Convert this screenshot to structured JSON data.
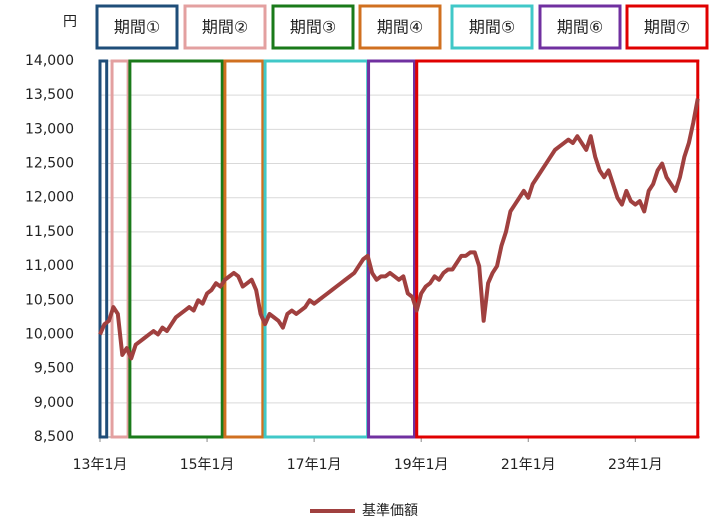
{
  "chart_data": {
    "type": "line",
    "y_unit": "円",
    "categories": [
      "13年1月",
      null,
      null,
      null,
      null,
      null,
      null,
      null,
      null,
      null,
      null,
      null,
      null,
      null,
      null,
      null,
      null,
      null,
      null,
      null,
      null,
      null,
      null,
      null,
      "15年1月",
      null,
      null,
      null,
      null,
      null,
      null,
      null,
      null,
      null,
      null,
      null,
      null,
      null,
      null,
      null,
      null,
      null,
      null,
      null,
      null,
      null,
      null,
      null,
      "17年1月",
      null,
      null,
      null,
      null,
      null,
      null,
      null,
      null,
      null,
      null,
      null,
      null,
      null,
      null,
      null,
      null,
      null,
      null,
      null,
      null,
      null,
      null,
      null,
      "19年1月",
      null,
      null,
      null,
      null,
      null,
      null,
      null,
      null,
      null,
      null,
      null,
      null,
      null,
      null,
      null,
      null,
      null,
      null,
      null,
      null,
      null,
      null,
      null,
      "21年1月",
      null,
      null,
      null,
      null,
      null,
      null,
      null,
      null,
      null,
      null,
      null,
      null,
      null,
      null,
      null,
      null,
      null,
      null,
      null,
      null,
      null,
      null,
      null,
      "23年1月",
      null,
      null,
      null,
      null,
      null,
      null,
      null,
      null,
      null,
      null,
      null,
      null,
      null,
      null
    ],
    "series": [
      {
        "name": "基準価額",
        "color": "#a0403f",
        "values": [
          10000,
          10150,
          10200,
          10400,
          10300,
          9700,
          9800,
          9650,
          9850,
          9900,
          9950,
          10000,
          10050,
          10000,
          10100,
          10050,
          10150,
          10250,
          10300,
          10350,
          10400,
          10350,
          10500,
          10450,
          10600,
          10650,
          10750,
          10700,
          10800,
          10850,
          10900,
          10850,
          10700,
          10750,
          10800,
          10650,
          10300,
          10150,
          10300,
          10250,
          10200,
          10100,
          10300,
          10350,
          10300,
          10350,
          10400,
          10500,
          10450,
          10500,
          10550,
          10600,
          10650,
          10700,
          10750,
          10800,
          10850,
          10900,
          11000,
          11100,
          11150,
          10900,
          10800,
          10850,
          10850,
          10900,
          10850,
          10800,
          10850,
          10600,
          10550,
          10350,
          10600,
          10700,
          10750,
          10850,
          10800,
          10900,
          10950,
          10950,
          11050,
          11150,
          11150,
          11200,
          11200,
          11000,
          10200,
          10750,
          10900,
          11000,
          11300,
          11500,
          11800,
          11900,
          12000,
          12100,
          12000,
          12200,
          12300,
          12400,
          12500,
          12600,
          12700,
          12750,
          12800,
          12850,
          12800,
          12900,
          12800,
          12700,
          12900,
          12600,
          12400,
          12300,
          12400,
          12200,
          12000,
          11900,
          12100,
          11950,
          11900,
          11950,
          11800,
          12100,
          12200,
          12400,
          12500,
          12300,
          12200,
          12100,
          12300,
          12600,
          12800,
          13100,
          13450
        ]
      }
    ],
    "ylim": [
      8500,
      14000
    ],
    "yticks": [
      {
        "value": 8500,
        "label": "8,500"
      },
      {
        "value": 9000,
        "label": "9,000"
      },
      {
        "value": 9500,
        "label": "9,500"
      },
      {
        "value": 10000,
        "label": "10,000"
      },
      {
        "value": 10500,
        "label": "10,500"
      },
      {
        "value": 11000,
        "label": "11,000"
      },
      {
        "value": 11500,
        "label": "11,500"
      },
      {
        "value": 12000,
        "label": "12,000"
      },
      {
        "value": 12500,
        "label": "12,500"
      },
      {
        "value": 13000,
        "label": "13,000"
      },
      {
        "value": 13500,
        "label": "13,500"
      },
      {
        "value": 14000,
        "label": "14,000"
      }
    ],
    "grid": true,
    "legend": "bottom",
    "periods": [
      {
        "label": "期間①",
        "color": "#1f4e79",
        "start": 0,
        "end": 1.5
      },
      {
        "label": "期間②",
        "color": "#e3a0a0",
        "start": 2.7,
        "end": 6.3
      },
      {
        "label": "期間③",
        "color": "#1a7a1a",
        "start": 6.7,
        "end": 27.4
      },
      {
        "label": "期間④",
        "color": "#d07020",
        "start": 28,
        "end": 36.5
      },
      {
        "label": "期間⑤",
        "color": "#40c8c8",
        "start": 37,
        "end": 60
      },
      {
        "label": "期間⑥",
        "color": "#7030a0",
        "start": 60.2,
        "end": 70.5
      },
      {
        "label": "期間⑦",
        "color": "#e00000",
        "start": 71,
        "end": 134
      }
    ]
  }
}
